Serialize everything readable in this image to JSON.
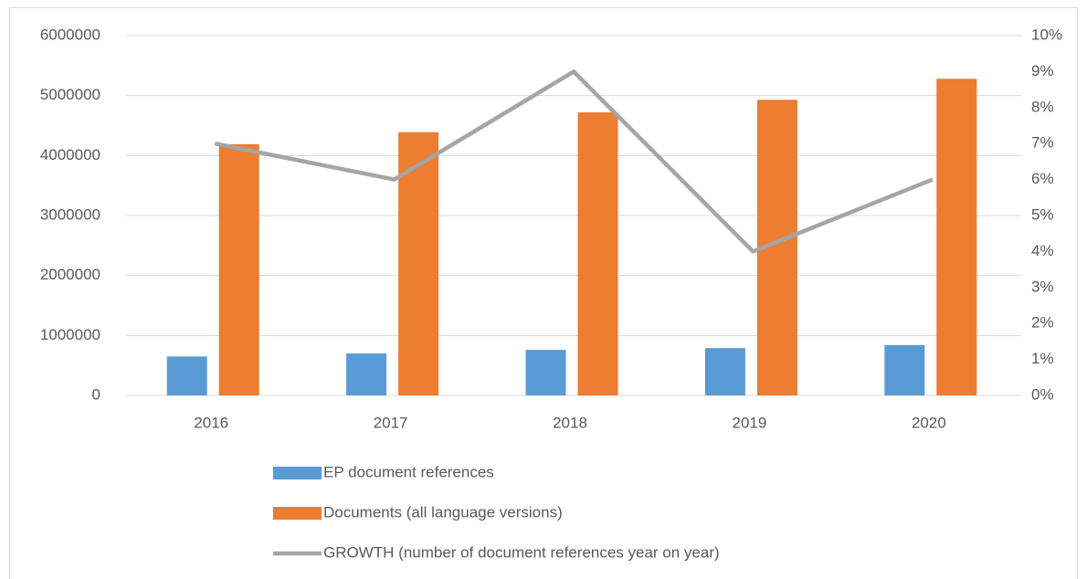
{
  "chart_data": {
    "type": "bar",
    "categories": [
      "2016",
      "2017",
      "2018",
      "2019",
      "2020"
    ],
    "series": [
      {
        "name": "EP document references",
        "color": "#5b9bd5",
        "values": [
          650000,
          700000,
          760000,
          790000,
          840000
        ]
      },
      {
        "name": "Documents (all language versions)",
        "color": "#ed7d31",
        "values": [
          4190000,
          4390000,
          4720000,
          4930000,
          5280000
        ]
      },
      {
        "name": "GROWTH (number of  document references year on year)",
        "color": "#a5a5a5",
        "type": "line",
        "axis": "y2",
        "values": [
          7,
          6,
          9,
          4,
          6
        ]
      }
    ],
    "ylim": [
      0,
      6000000
    ],
    "yticks": [
      0,
      1000000,
      2000000,
      3000000,
      4000000,
      5000000,
      6000000
    ],
    "y2lim": [
      0,
      10
    ],
    "y2ticks": [
      {
        "value": 0,
        "label": "0%"
      },
      {
        "value": 1,
        "label": "1%"
      },
      {
        "value": 2,
        "label": "2%"
      },
      {
        "value": 3,
        "label": "3%"
      },
      {
        "value": 4,
        "label": "4%"
      },
      {
        "value": 5,
        "label": "5%"
      },
      {
        "value": 6,
        "label": "6%"
      },
      {
        "value": 7,
        "label": "7%"
      },
      {
        "value": 8,
        "label": "8%"
      },
      {
        "value": 9,
        "label": "9%"
      },
      {
        "value": 10,
        "label": "10%"
      }
    ],
    "grid": true,
    "legend": "bottom"
  }
}
